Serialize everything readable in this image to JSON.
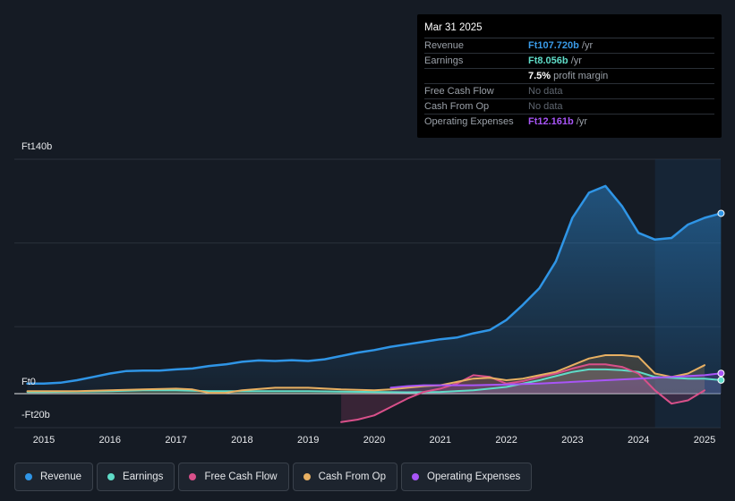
{
  "tooltip": {
    "date": "Mar 31 2025",
    "rows": [
      {
        "label": "Revenue",
        "value": "Ft107.720b",
        "unit": " /yr",
        "color": "#3a9be8"
      },
      {
        "label": "Earnings",
        "value": "Ft8.056b",
        "unit": " /yr",
        "color": "#5fdcc8"
      },
      {
        "label": "",
        "value": "7.5%",
        "unit": " profit margin",
        "color": "#ffffff"
      },
      {
        "label": "Free Cash Flow",
        "value": "",
        "unit": "No data",
        "color": "#6b7280"
      },
      {
        "label": "Cash From Op",
        "value": "",
        "unit": "No data",
        "color": "#6b7280"
      },
      {
        "label": "Operating Expenses",
        "value": "Ft12.161b",
        "unit": " /yr",
        "color": "#a855f7"
      }
    ]
  },
  "legend": [
    {
      "label": "Revenue",
      "color": "#2f95e6"
    },
    {
      "label": "Earnings",
      "color": "#5fdcc8"
    },
    {
      "label": "Free Cash Flow",
      "color": "#d9508a"
    },
    {
      "label": "Cash From Op",
      "color": "#e8b062"
    },
    {
      "label": "Operating Expenses",
      "color": "#a855f7"
    }
  ],
  "chart_data": {
    "type": "area",
    "y_tick_labels": [
      "Ft140b",
      "Ft0",
      "-Ft20b"
    ],
    "y_tick_values": [
      140,
      0,
      -20
    ],
    "ylim": [
      -20,
      140
    ],
    "xlim": [
      2014.75,
      2025.25
    ],
    "x_tick_labels": [
      "2015",
      "2016",
      "2017",
      "2018",
      "2019",
      "2020",
      "2021",
      "2022",
      "2023",
      "2024",
      "2025"
    ],
    "x_tick_values": [
      2015,
      2016,
      2017,
      2018,
      2019,
      2020,
      2021,
      2022,
      2023,
      2024,
      2025
    ],
    "grid": "horizontal",
    "forecast_shade_start": 2024.25,
    "series": [
      {
        "name": "Revenue",
        "color": "#2f95e6",
        "fill": true,
        "points": [
          [
            2014.75,
            6
          ],
          [
            2015,
            6
          ],
          [
            2015.25,
            6.5
          ],
          [
            2015.5,
            8
          ],
          [
            2015.75,
            10
          ],
          [
            2016,
            12
          ],
          [
            2016.25,
            13.5
          ],
          [
            2016.5,
            13.8
          ],
          [
            2016.75,
            13.8
          ],
          [
            2017,
            14.5
          ],
          [
            2017.25,
            15
          ],
          [
            2017.5,
            16.5
          ],
          [
            2017.75,
            17.5
          ],
          [
            2018,
            19
          ],
          [
            2018.25,
            19.8
          ],
          [
            2018.5,
            19.5
          ],
          [
            2018.75,
            20
          ],
          [
            2019,
            19.5
          ],
          [
            2019.25,
            20.5
          ],
          [
            2019.5,
            22.5
          ],
          [
            2019.75,
            24.5
          ],
          [
            2020,
            26
          ],
          [
            2020.25,
            28
          ],
          [
            2020.5,
            29.5
          ],
          [
            2020.75,
            31
          ],
          [
            2021,
            32.5
          ],
          [
            2021.25,
            33.5
          ],
          [
            2021.5,
            36
          ],
          [
            2021.75,
            38
          ],
          [
            2022,
            44
          ],
          [
            2022.25,
            53
          ],
          [
            2022.5,
            63
          ],
          [
            2022.75,
            79
          ],
          [
            2023,
            105
          ],
          [
            2023.25,
            120
          ],
          [
            2023.5,
            124
          ],
          [
            2023.75,
            112
          ],
          [
            2024,
            96
          ],
          [
            2024.25,
            92
          ],
          [
            2024.5,
            93
          ],
          [
            2024.75,
            101
          ],
          [
            2025,
            105
          ],
          [
            2025.25,
            107.7
          ]
        ]
      },
      {
        "name": "Earnings",
        "color": "#5fdcc8",
        "fill": true,
        "points": [
          [
            2014.75,
            1
          ],
          [
            2015,
            1
          ],
          [
            2015.5,
            1.2
          ],
          [
            2016,
            1.5
          ],
          [
            2016.5,
            2
          ],
          [
            2017,
            2
          ],
          [
            2017.5,
            1.5
          ],
          [
            2018,
            1.5
          ],
          [
            2018.5,
            1.5
          ],
          [
            2019,
            1.5
          ],
          [
            2019.5,
            1.2
          ],
          [
            2020,
            1
          ],
          [
            2020.5,
            0.8
          ],
          [
            2021,
            1
          ],
          [
            2021.5,
            2
          ],
          [
            2022,
            4
          ],
          [
            2022.5,
            8
          ],
          [
            2023,
            13
          ],
          [
            2023.25,
            14.5
          ],
          [
            2023.5,
            14.5
          ],
          [
            2023.75,
            14
          ],
          [
            2024,
            13
          ],
          [
            2024.25,
            10
          ],
          [
            2024.5,
            9.5
          ],
          [
            2024.75,
            9
          ],
          [
            2025,
            9
          ],
          [
            2025.25,
            8.06
          ]
        ]
      },
      {
        "name": "Free Cash Flow",
        "color": "#d9508a",
        "fill": true,
        "points": [
          [
            2019.5,
            -17
          ],
          [
            2019.75,
            -15.5
          ],
          [
            2020,
            -13
          ],
          [
            2020.25,
            -8
          ],
          [
            2020.5,
            -3
          ],
          [
            2020.75,
            1
          ],
          [
            2021,
            3
          ],
          [
            2021.25,
            6
          ],
          [
            2021.5,
            11
          ],
          [
            2021.75,
            10
          ],
          [
            2022,
            6
          ],
          [
            2022.25,
            7.5
          ],
          [
            2022.5,
            10
          ],
          [
            2022.75,
            12
          ],
          [
            2023,
            15
          ],
          [
            2023.25,
            17.5
          ],
          [
            2023.5,
            17.5
          ],
          [
            2023.75,
            16
          ],
          [
            2024,
            12
          ],
          [
            2024.25,
            2
          ],
          [
            2024.5,
            -6
          ],
          [
            2024.75,
            -4
          ],
          [
            2025,
            2
          ]
        ]
      },
      {
        "name": "Cash From Op",
        "color": "#e8b062",
        "fill": true,
        "points": [
          [
            2014.75,
            1.5
          ],
          [
            2015,
            1.5
          ],
          [
            2015.5,
            1.5
          ],
          [
            2016,
            2
          ],
          [
            2016.5,
            2.5
          ],
          [
            2017,
            3
          ],
          [
            2017.25,
            2.5
          ],
          [
            2017.5,
            0.5
          ],
          [
            2017.75,
            0.5
          ],
          [
            2018,
            2
          ],
          [
            2018.5,
            3.5
          ],
          [
            2019,
            3.5
          ],
          [
            2019.5,
            2.5
          ],
          [
            2020,
            2
          ],
          [
            2020.25,
            2.5
          ],
          [
            2020.5,
            3.5
          ],
          [
            2020.75,
            4.5
          ],
          [
            2021,
            5
          ],
          [
            2021.25,
            7
          ],
          [
            2021.5,
            9
          ],
          [
            2021.75,
            9.5
          ],
          [
            2022,
            8
          ],
          [
            2022.25,
            9
          ],
          [
            2022.5,
            11
          ],
          [
            2022.75,
            13
          ],
          [
            2023,
            17
          ],
          [
            2023.25,
            21
          ],
          [
            2023.5,
            23
          ],
          [
            2023.75,
            23
          ],
          [
            2024,
            22
          ],
          [
            2024.25,
            12
          ],
          [
            2024.5,
            10
          ],
          [
            2024.75,
            12
          ],
          [
            2025,
            17
          ]
        ]
      },
      {
        "name": "Operating Expenses",
        "color": "#a855f7",
        "fill": true,
        "points": [
          [
            2020.25,
            3.5
          ],
          [
            2020.5,
            4.5
          ],
          [
            2020.75,
            5
          ],
          [
            2021,
            5
          ],
          [
            2021.5,
            5
          ],
          [
            2022,
            5.5
          ],
          [
            2022.5,
            6
          ],
          [
            2023,
            7
          ],
          [
            2023.5,
            8
          ],
          [
            2024,
            9
          ],
          [
            2024.5,
            10
          ],
          [
            2025,
            11
          ],
          [
            2025.25,
            12.16
          ]
        ]
      }
    ]
  }
}
